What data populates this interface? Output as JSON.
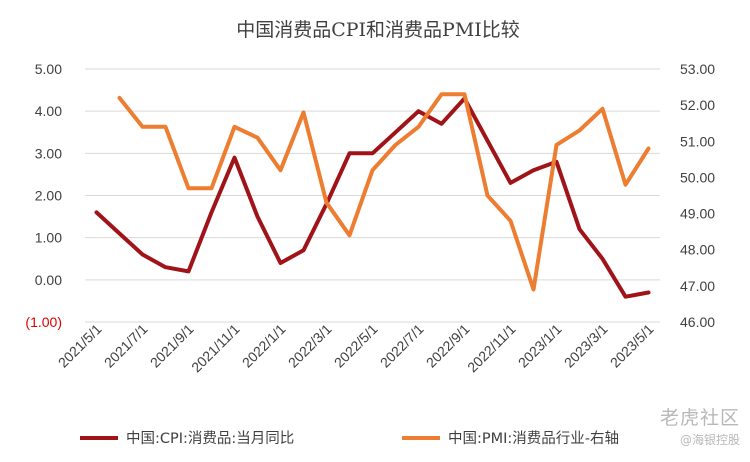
{
  "chart_data": {
    "type": "line",
    "title": "中国消费品CPI和消费品PMI比较",
    "x": [
      "2021/5/1",
      "2021/6/1",
      "2021/7/1",
      "2021/8/1",
      "2021/9/1",
      "2021/10/1",
      "2021/11/1",
      "2021/12/1",
      "2022/1/1",
      "2022/2/1",
      "2022/3/1",
      "2022/4/1",
      "2022/5/1",
      "2022/6/1",
      "2022/7/1",
      "2022/8/1",
      "2022/9/1",
      "2022/10/1",
      "2022/11/1",
      "2022/12/1",
      "2023/1/1",
      "2023/2/1",
      "2023/3/1",
      "2023/4/1",
      "2023/5/1"
    ],
    "x_tick_labels": [
      "2021/5/1",
      "2021/7/1",
      "2021/9/1",
      "2021/11/1",
      "2022/1/1",
      "2022/3/1",
      "2022/5/1",
      "2022/7/1",
      "2022/9/1",
      "2022/11/1",
      "2023/1/1",
      "2023/3/1",
      "2023/5/1"
    ],
    "y_left": {
      "ylim": [
        -1,
        5
      ],
      "ticks": [
        5,
        4,
        3,
        2,
        1,
        0,
        -1
      ],
      "tick_labels": [
        "5.00",
        "4.00",
        "3.00",
        "2.00",
        "1.00",
        "0.00",
        "(1.00)"
      ]
    },
    "y_right": {
      "ylim": [
        46,
        53
      ],
      "ticks": [
        53,
        52,
        51,
        50,
        49,
        48,
        47,
        46
      ],
      "tick_labels": [
        "53.00",
        "52.00",
        "51.00",
        "50.00",
        "49.00",
        "48.00",
        "47.00",
        "46.00"
      ]
    },
    "series": [
      {
        "name": "中国:CPI:消费品:当月同比",
        "axis": "left",
        "color": "#a01419",
        "values": [
          1.6,
          1.1,
          0.6,
          0.3,
          0.2,
          1.6,
          2.9,
          1.5,
          0.4,
          0.7,
          1.8,
          3.0,
          3.0,
          3.5,
          4.0,
          3.7,
          4.3,
          3.3,
          2.3,
          2.6,
          2.8,
          1.2,
          0.5,
          -0.4,
          -0.3
        ]
      },
      {
        "name": "中国:PMI:消费品行业-右轴",
        "axis": "right",
        "color": "#ed7d31",
        "values": [
          null,
          52.2,
          51.4,
          51.4,
          49.7,
          49.7,
          51.4,
          51.1,
          50.2,
          51.8,
          49.3,
          48.4,
          50.2,
          50.9,
          51.4,
          52.3,
          52.3,
          49.5,
          48.8,
          46.9,
          50.9,
          51.3,
          51.9,
          49.8,
          50.8
        ]
      }
    ],
    "grid": true,
    "legend_position": "bottom"
  },
  "watermark": {
    "main": "老虎社区",
    "sub": "@海银控股"
  }
}
